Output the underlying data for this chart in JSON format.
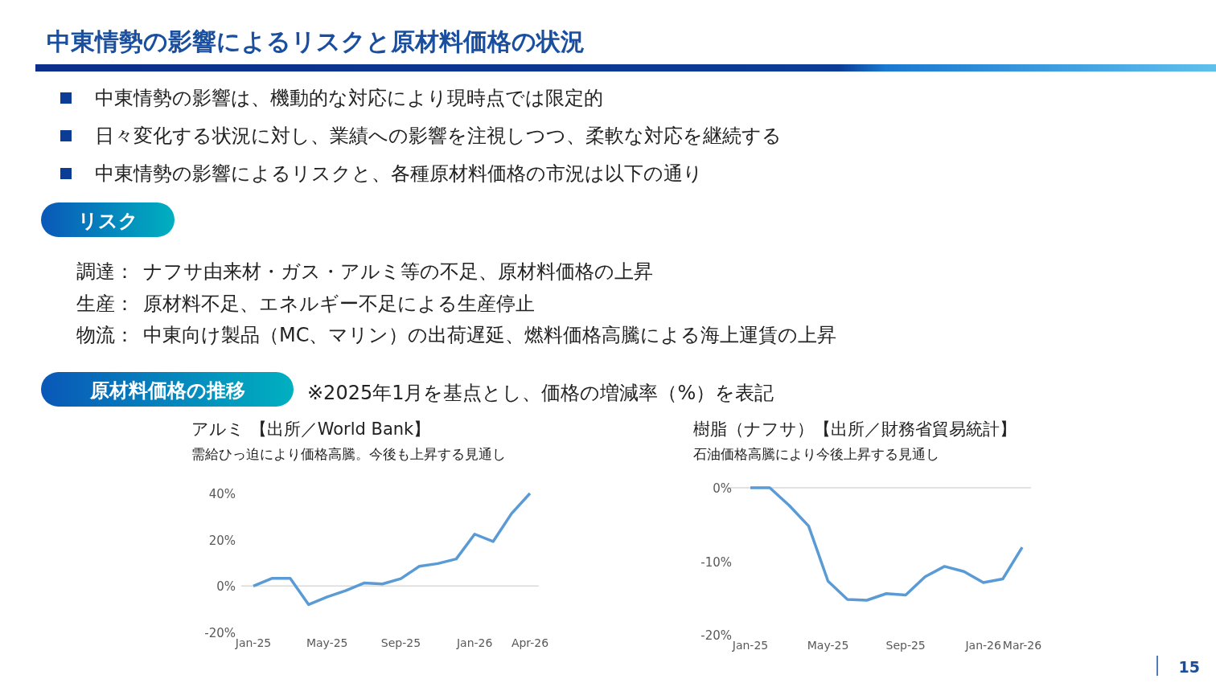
{
  "chart_data": [
    {
      "type": "other",
      "title": "中東情勢の影響によるリスクと原材料価格の状況",
      "annotations": [
        "中東情勢の影響は、機動的な対応により現時点では限定的",
        "日々変化する状況に対し、業績への影響を注視しつつ、柔軟な対応を継続する",
        "中東情勢の影響によるリスクと、各種原材料価格の市況は以下の通り",
        "リスク",
        "調達：",
        "ナフサ由来材・ガス・アルミ等の不足、原材料価格の上昇",
        "生産：",
        "原材料不足、エネルギー不足による生産停止",
        "物流：",
        "中東向け製品（MC、マリン）の出荷遅延、燃料価格高騰による海上運賃の上昇",
        "原材料価格の推移",
        "※2025年1月を基点とし、価格の増減率（%）を表記",
        "15"
      ]
    },
    {
      "type": "line",
      "title": "アルミ 【出所／World Bank】",
      "subtitle": "需給ひっ迫により価格高騰。今後も上昇する見通し",
      "categories": [
        "Jan-25",
        null,
        null,
        null,
        "May-25",
        null,
        null,
        null,
        "Sep-25",
        null,
        null,
        null,
        "Jan-26",
        null,
        null,
        "Apr-26"
      ],
      "values": [
        0,
        3.3,
        3.3,
        -8,
        -4.7,
        -2,
        1.3,
        0.9,
        3.2,
        8.5,
        9.7,
        11.7,
        22.4,
        19.2,
        31.3,
        40
      ],
      "color": "#5b9bd5",
      "ylim": [
        -20,
        40
      ],
      "yticks": [
        {
          "value": -20,
          "label": "-20%"
        },
        {
          "value": 0,
          "label": "0%"
        },
        {
          "value": 20,
          "label": "20%"
        },
        {
          "value": 40,
          "label": "40%"
        }
      ],
      "ref_lines": [
        {
          "axis": "y",
          "value": 0,
          "color": "#d9d9d9"
        }
      ]
    },
    {
      "type": "line",
      "title": "樹脂（ナフサ）【出所／財務省貿易統計】",
      "subtitle": "石油価格高騰により今後上昇する見通し",
      "categories": [
        "Jan-25",
        null,
        null,
        null,
        "May-25",
        null,
        null,
        null,
        "Sep-25",
        null,
        null,
        null,
        "Jan-26",
        null,
        "Mar-26"
      ],
      "values": [
        0,
        0,
        -2.4,
        -5.2,
        -12.7,
        -15.2,
        -15.3,
        -14.4,
        -14.6,
        -12.1,
        -10.7,
        -11.4,
        -12.9,
        -12.4,
        -8.1
      ],
      "color": "#5b9bd5",
      "ylim": [
        -20,
        0
      ],
      "yticks": [
        {
          "value": -20,
          "label": "-20%"
        },
        {
          "value": -10,
          "label": "-10%"
        },
        {
          "value": 0,
          "label": "0%"
        }
      ],
      "ref_lines": [
        {
          "axis": "y",
          "value": 0,
          "color": "#d9d9d9"
        }
      ]
    }
  ]
}
